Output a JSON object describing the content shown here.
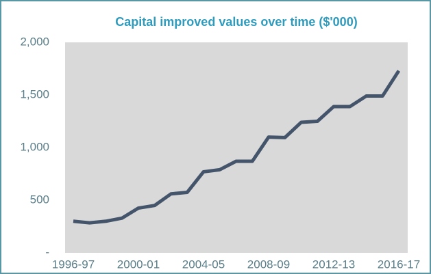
{
  "chart_data": {
    "type": "line",
    "title": "Capital improved values over time ($'000)",
    "categories": [
      "1996-97",
      null,
      null,
      null,
      "2000-01",
      null,
      null,
      null,
      "2004-05",
      null,
      null,
      null,
      "2008-09",
      null,
      null,
      null,
      "2012-13",
      null,
      null,
      null,
      "2016-17"
    ],
    "series": [
      {
        "name": "Capital improved values",
        "color": "#44546a",
        "values": [
          300,
          285,
          300,
          330,
          425,
          450,
          560,
          575,
          770,
          790,
          870,
          870,
          1100,
          1095,
          1240,
          1250,
          1390,
          1390,
          1490,
          1490,
          1730
        ]
      }
    ],
    "ylim": [
      0,
      2000
    ],
    "yticks": [
      {
        "value": 0,
        "label": "-"
      },
      500,
      {
        "value": 1000,
        "label": "1,000"
      },
      {
        "value": 1500,
        "label": "1,500"
      },
      {
        "value": 2000,
        "label": "2,000"
      }
    ],
    "grid": false
  }
}
